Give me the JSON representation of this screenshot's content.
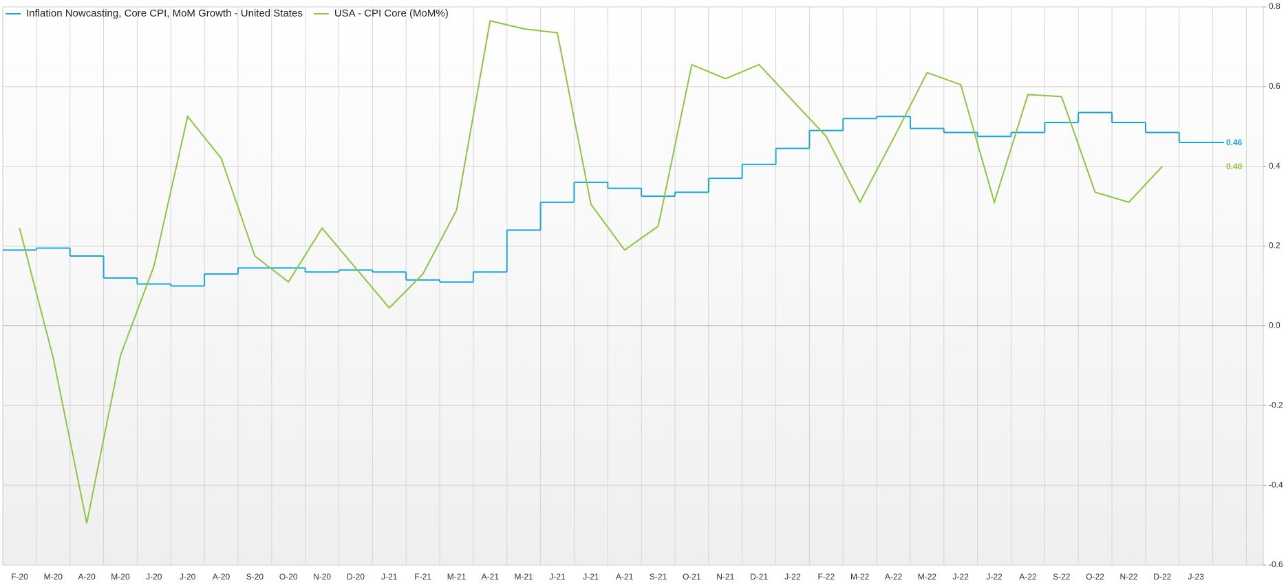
{
  "chart_data": {
    "type": "line",
    "categories": [
      "F-20",
      "M-20",
      "A-20",
      "M-20",
      "J-20",
      "J-20",
      "A-20",
      "S-20",
      "O-20",
      "N-20",
      "D-20",
      "J-21",
      "F-21",
      "M-21",
      "A-21",
      "M-21",
      "J-21",
      "J-21",
      "A-21",
      "S-21",
      "O-21",
      "N-21",
      "D-21",
      "J-22",
      "F-22",
      "M-22",
      "A-22",
      "M-22",
      "J-22",
      "J-22",
      "A-22",
      "S-22",
      "O-22",
      "N-22",
      "D-22",
      "J-23"
    ],
    "series": [
      {
        "name": "Inflation Nowcasting, Core CPI, MoM Growth - United States",
        "color": "#1aa7d8",
        "step": true,
        "values": [
          0.19,
          0.195,
          0.175,
          0.12,
          0.105,
          0.1,
          0.13,
          0.145,
          0.145,
          0.135,
          0.14,
          0.135,
          0.115,
          0.11,
          0.135,
          0.24,
          0.31,
          0.36,
          0.345,
          0.325,
          0.335,
          0.37,
          0.405,
          0.445,
          0.49,
          0.52,
          0.525,
          0.495,
          0.485,
          0.475,
          0.485,
          0.51,
          0.535,
          0.51,
          0.485,
          0.46
        ]
      },
      {
        "name": "USA - CPI Core (MoM%)",
        "color": "#8dc63f",
        "step": false,
        "values": [
          0.245,
          -0.08,
          -0.495,
          -0.075,
          0.15,
          0.525,
          0.42,
          0.175,
          0.11,
          0.245,
          0.145,
          0.045,
          0.13,
          0.29,
          0.765,
          0.745,
          0.735,
          0.305,
          0.19,
          0.25,
          0.655,
          0.62,
          0.655,
          0.565,
          0.475,
          0.31,
          0.47,
          0.635,
          0.605,
          0.31,
          0.58,
          0.575,
          0.335,
          0.31,
          0.4,
          null
        ],
        "value_labels": [
          null,
          null,
          null,
          null,
          null,
          null,
          null,
          null,
          null,
          null,
          null,
          null,
          null,
          null,
          null,
          null,
          null,
          null,
          null,
          null,
          null,
          null,
          null,
          null,
          null,
          null,
          null,
          null,
          null,
          null,
          null,
          null,
          null,
          null,
          "0.40",
          null
        ]
      }
    ],
    "ylim": [
      -0.6,
      0.8
    ],
    "yticks": [
      0.8,
      0.6,
      0.4,
      0.2,
      {
        "value": 0,
        "label": "0.0"
      },
      -0.2,
      -0.4,
      -0.6
    ],
    "grid": true
  }
}
